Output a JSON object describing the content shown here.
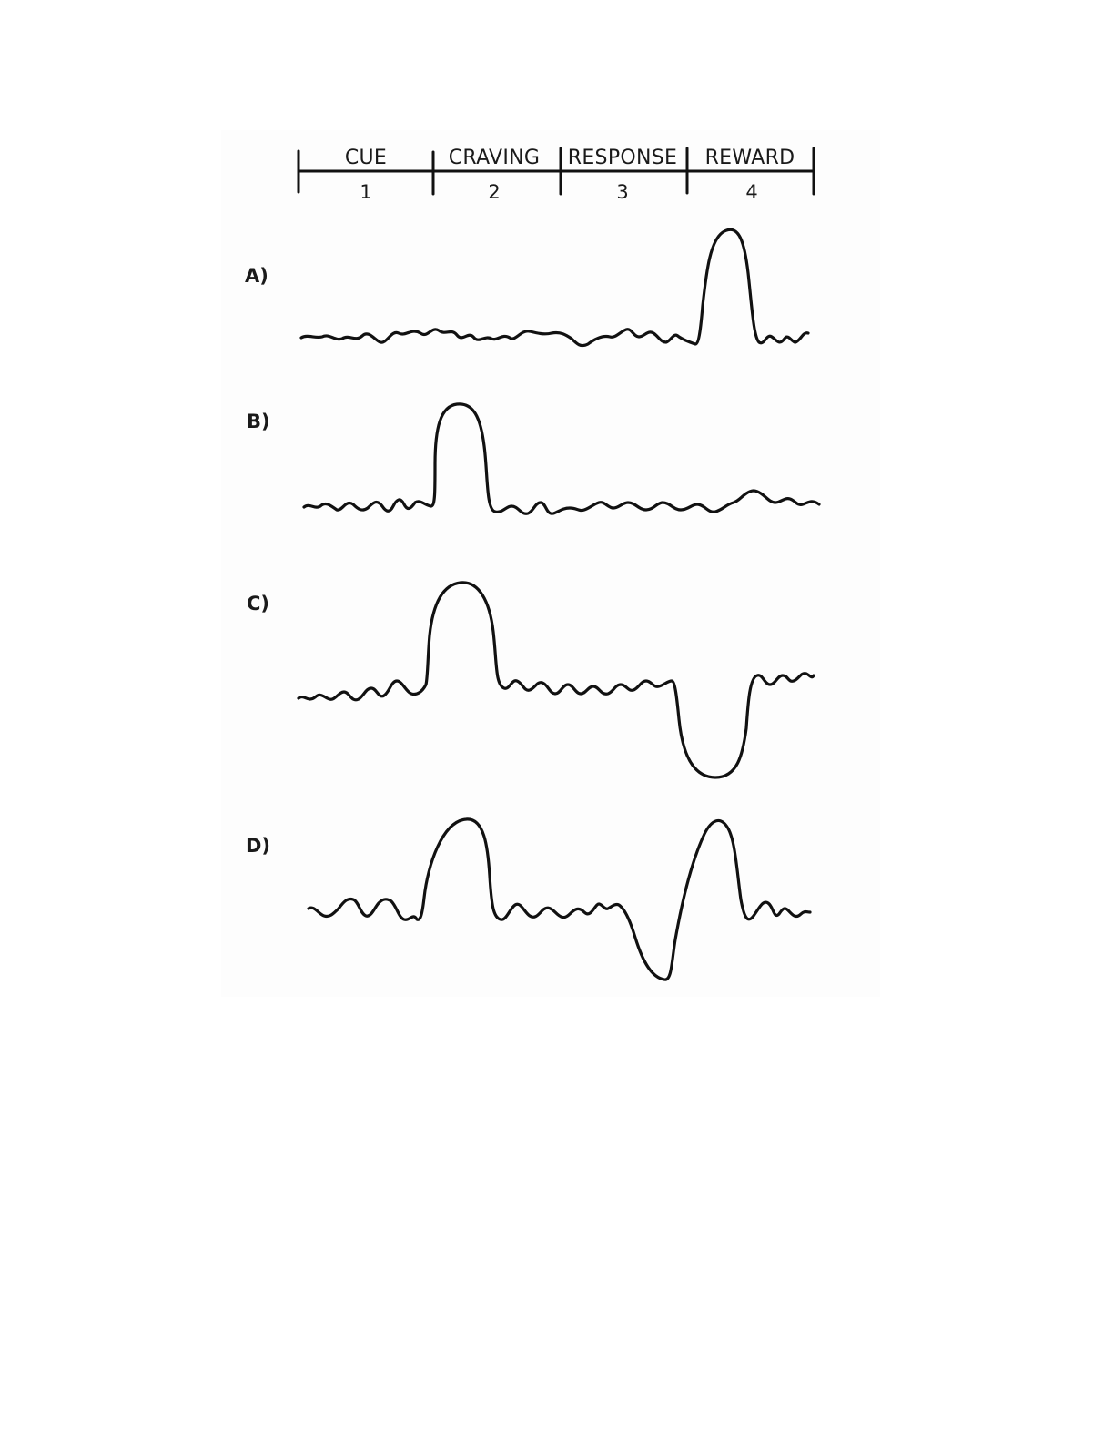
{
  "stages": [
    {
      "label": "CUE",
      "number": "1"
    },
    {
      "label": "CRAVING",
      "number": "2"
    },
    {
      "label": "RESPONSE",
      "number": "3"
    },
    {
      "label": "REWARD",
      "number": "4"
    }
  ],
  "rows": [
    {
      "label": "A)",
      "description": "spike at reward"
    },
    {
      "label": "B)",
      "description": "spike at craving"
    },
    {
      "label": "C)",
      "description": "spike at craving, dip when reward absent"
    },
    {
      "label": "D)",
      "description": "spike at craving, dip then spike at reward"
    }
  ],
  "colors": {
    "ink": "#111111",
    "background": "#ffffff"
  }
}
